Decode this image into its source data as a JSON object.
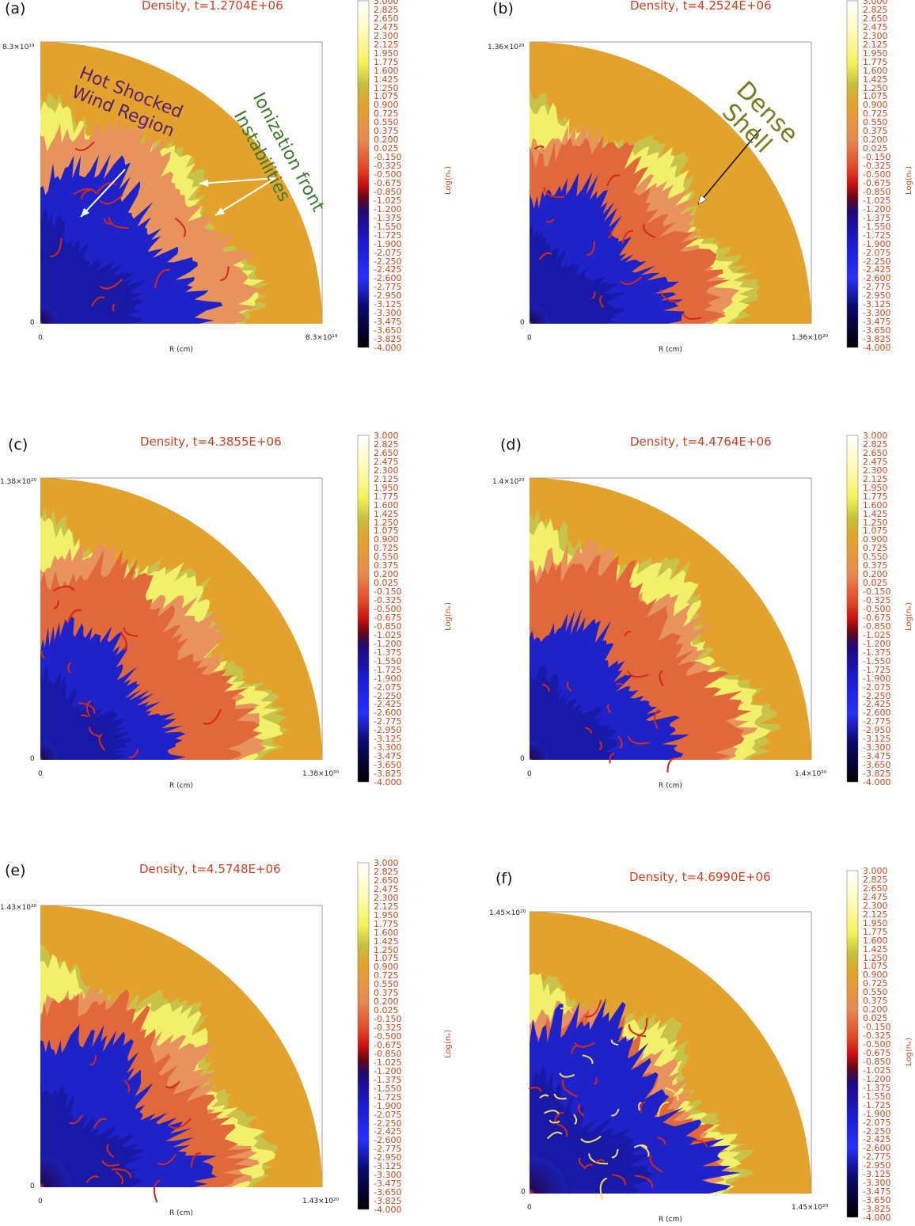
{
  "chart_data": [
    {
      "type": "heatmap",
      "panel_label": "(a)",
      "title": "Density, t=1.2704E+06",
      "xlabel": "R (cm)",
      "ylabel": "",
      "x_ticks": [
        "0",
        "8.3×10¹⁹"
      ],
      "y_ticks": [
        "0",
        "8.3×10¹⁹"
      ],
      "xlim": [
        0,
        8.3e+19
      ],
      "ylim": [
        0,
        8.3e+19
      ],
      "colorbar_label": "Log(nₑ)",
      "annotations": [
        "Hot Shocked Wind Region",
        "Ionization front",
        "Instabilities"
      ]
    },
    {
      "type": "heatmap",
      "panel_label": "(b)",
      "title": "Density, t=4.2524E+06",
      "xlabel": "R (cm)",
      "ylabel": "",
      "x_ticks": [
        "0",
        "1.36×10²⁰"
      ],
      "y_ticks": [
        "0",
        "1.36×10²⁰"
      ],
      "xlim": [
        0,
        1.36e+20
      ],
      "ylim": [
        0,
        1.36e+20
      ],
      "colorbar_label": "Log(nₑ)",
      "annotations": [
        "Dense",
        "Shell"
      ]
    },
    {
      "type": "heatmap",
      "panel_label": "(c)",
      "title": "Density, t=4.3855E+06",
      "xlabel": "R (cm)",
      "ylabel": "",
      "x_ticks": [
        "0",
        "1.38×10²⁰"
      ],
      "y_ticks": [
        "0",
        "1.38×10²⁰"
      ],
      "xlim": [
        0,
        1.38e+20
      ],
      "ylim": [
        0,
        1.38e+20
      ],
      "colorbar_label": "Log(nₑ)",
      "annotations": []
    },
    {
      "type": "heatmap",
      "panel_label": "(d)",
      "title": "Density, t=4.4764E+06",
      "xlabel": "R (cm)",
      "ylabel": "",
      "x_ticks": [
        "0",
        "1.4×10²⁰"
      ],
      "y_ticks": [
        "0",
        "1.4×10²⁰"
      ],
      "xlim": [
        0,
        1.4e+20
      ],
      "ylim": [
        0,
        1.4e+20
      ],
      "colorbar_label": "Log(nₑ)",
      "annotations": []
    },
    {
      "type": "heatmap",
      "panel_label": "(e)",
      "title": "Density, t=4.5748E+06",
      "xlabel": "R (cm)",
      "ylabel": "",
      "x_ticks": [
        "0",
        "1.43×10²⁰"
      ],
      "y_ticks": [
        "0",
        "1.43×10²⁰"
      ],
      "xlim": [
        0,
        1.43e+20
      ],
      "ylim": [
        0,
        1.43e+20
      ],
      "colorbar_label": "Log(nₑ)",
      "annotations": []
    },
    {
      "type": "heatmap",
      "panel_label": "(f)",
      "title": "Density, t=4.6990E+06",
      "xlabel": "R (cm)",
      "ylabel": "",
      "x_ticks": [
        "0",
        "1.45×10²⁰"
      ],
      "y_ticks": [
        "0",
        "1.45×10²⁰"
      ],
      "xlim": [
        0,
        1.45e+20
      ],
      "ylim": [
        0,
        1.45e+20
      ],
      "colorbar_label": "Log(nₑ)",
      "annotations": []
    }
  ],
  "colorbar": {
    "range": [
      -4.0,
      3.0
    ],
    "ticks": [
      "3.000",
      "2.825",
      "2.650",
      "2.475",
      "2.300",
      "2.125",
      "1.950",
      "1.775",
      "1.600",
      "1.425",
      "1.250",
      "1.075",
      "0.900",
      "0.725",
      "0.550",
      "0.375",
      "0.200",
      "0.025",
      "-0.150",
      "-0.325",
      "-0.500",
      "-0.675",
      "-0.850",
      "-1.025",
      "-1.200",
      "-1.375",
      "-1.550",
      "-1.725",
      "-1.900",
      "-2.075",
      "-2.250",
      "-2.425",
      "-2.600",
      "-2.775",
      "-2.950",
      "-3.125",
      "-3.300",
      "-3.475",
      "-3.650",
      "-3.825",
      "-4.000"
    ]
  },
  "colors": {
    "ambient": "#e2a22c",
    "shell": "#f2ef6a",
    "shell_olive": "#c8c24a",
    "ionized": "#e0683a",
    "ionized_light": "#e8935e",
    "cavity": "#1e22c8",
    "cavity_dark": "#0c0a5a",
    "red_streak": "#d42818",
    "annotation_purple": "#5a2070",
    "annotation_green": "#3a7a2a",
    "annotation_olive": "#7a7a20",
    "title_color": "#d04020"
  }
}
